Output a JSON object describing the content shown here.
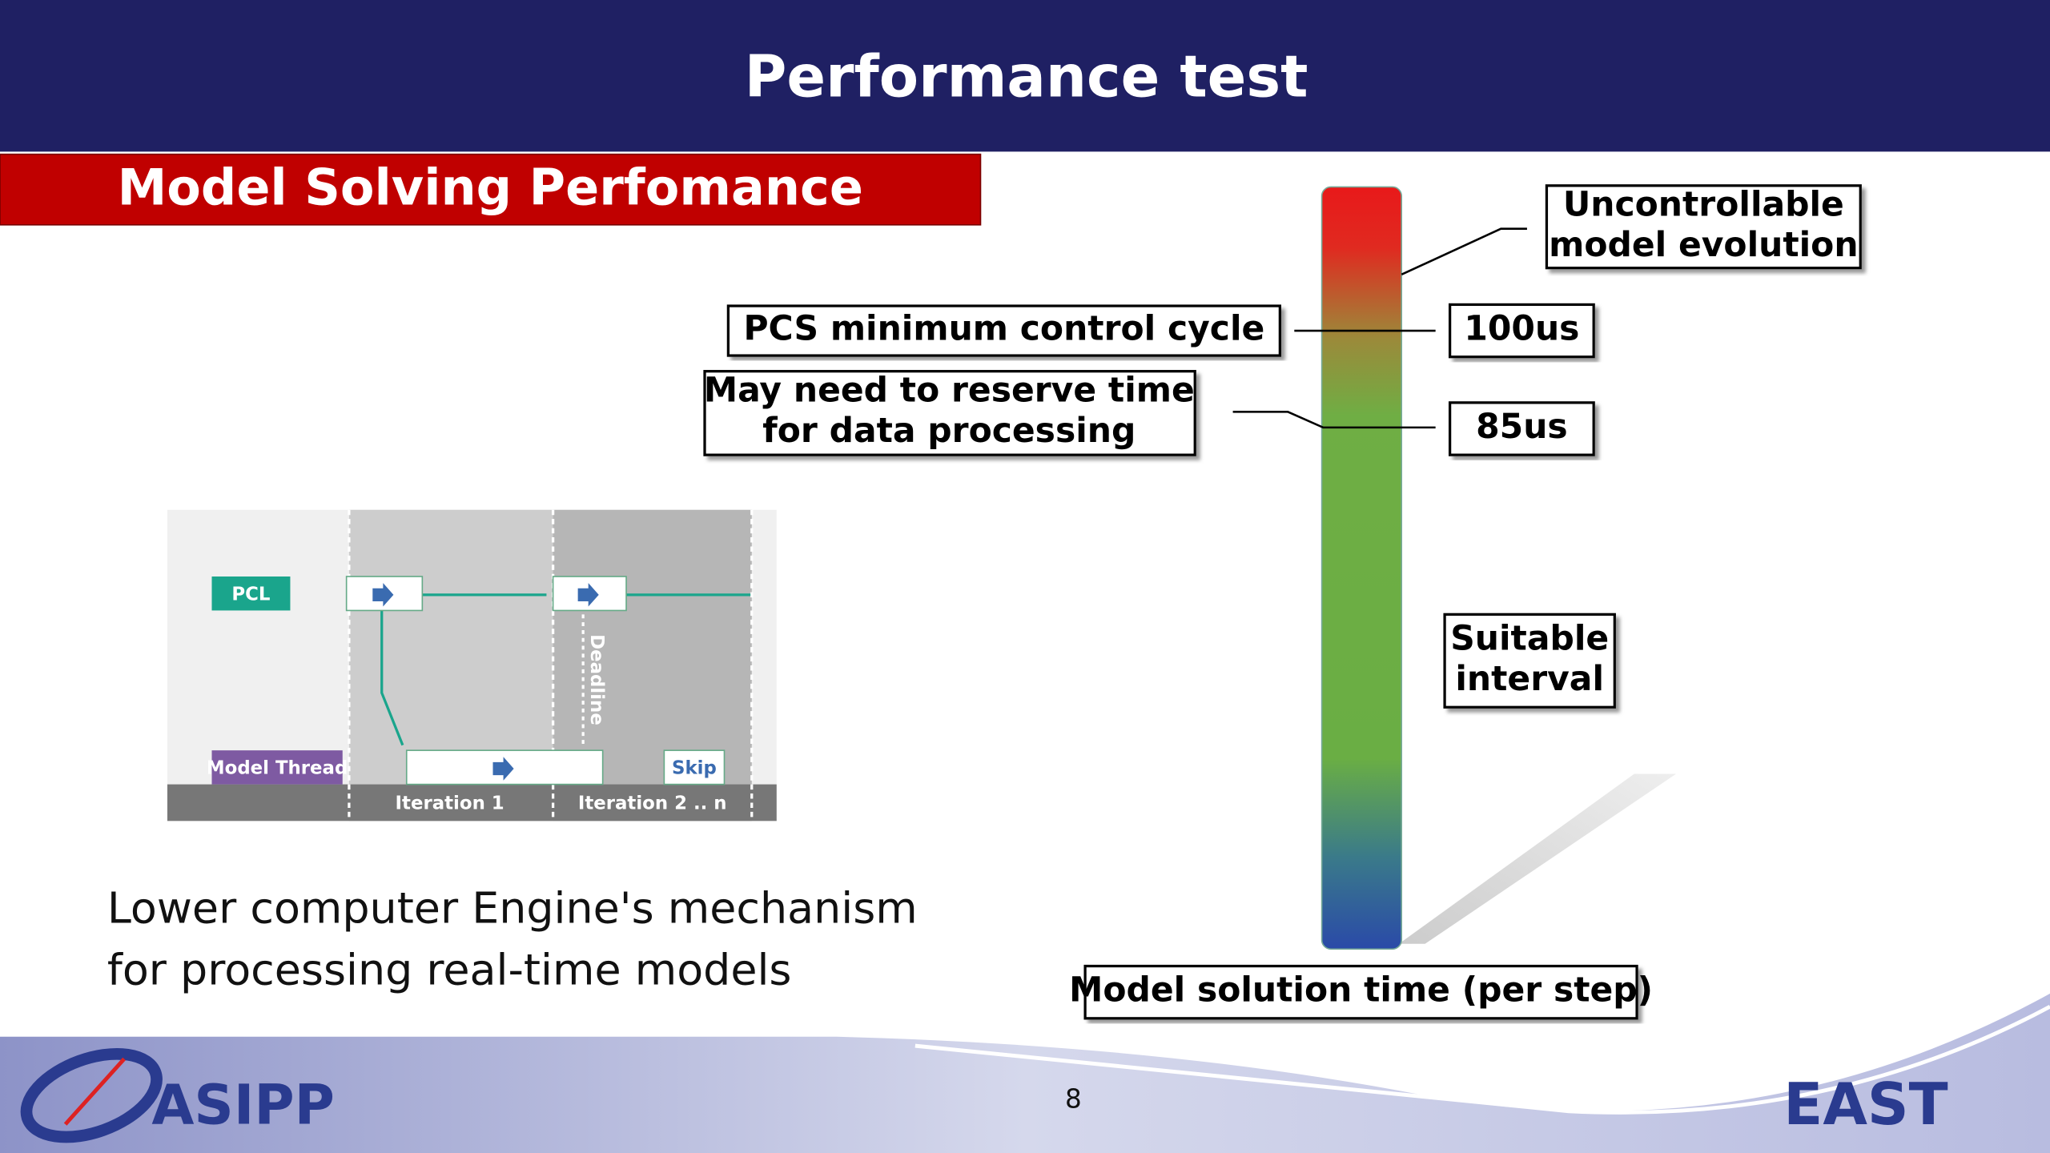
{
  "header": {
    "title": "Performance test"
  },
  "section": {
    "title": "Model Solving Perfomance"
  },
  "timing_diagram": {
    "pcl": "PCL",
    "model_thread": "Model Thread",
    "deadline": "Deadline",
    "skip": "Skip",
    "iterations": [
      "Iteration 1",
      "Iteration 2 .. n"
    ]
  },
  "caption": [
    "Lower computer Engine's mechanism",
    "for processing real-time models"
  ],
  "scale": {
    "uncontrollable": [
      "Uncontrollable",
      "model evolution"
    ],
    "pcs_cycle": "PCS minimum control cycle",
    "reserve": [
      "May need to reserve time",
      "for data processing"
    ],
    "limit_high": "100us",
    "limit_low": "85us",
    "suitable": [
      "Suitable",
      "interval"
    ],
    "axis_label": "Model solution time (per step)"
  },
  "footer": {
    "left_logo": "ASIPP",
    "page": "8",
    "right_logo": "EAST"
  }
}
